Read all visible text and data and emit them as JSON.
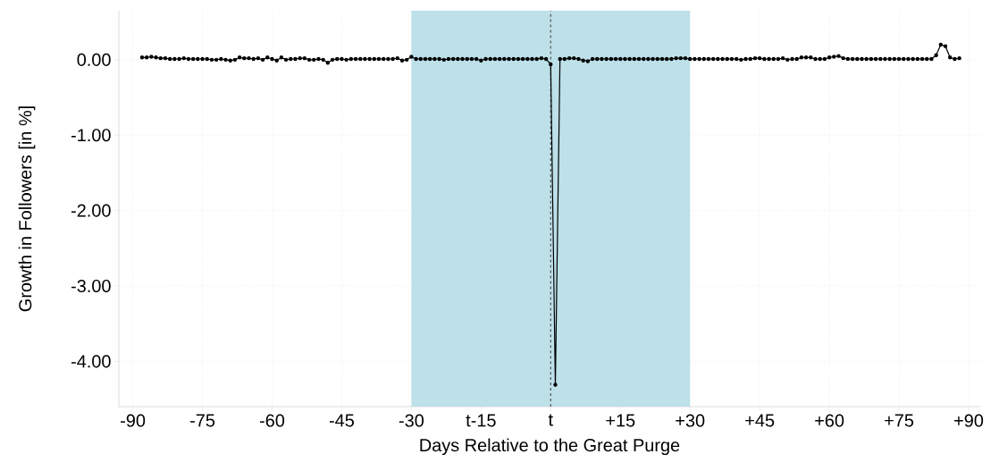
{
  "chart_data": {
    "type": "line",
    "xlabel": "Days Relative to the Great Purge",
    "ylabel": "Growth in Followers [in %]",
    "x": [
      -88,
      -87,
      -86,
      -85,
      -84,
      -83,
      -82,
      -81,
      -80,
      -79,
      -78,
      -77,
      -76,
      -75,
      -74,
      -73,
      -72,
      -71,
      -70,
      -69,
      -68,
      -67,
      -66,
      -65,
      -64,
      -63,
      -62,
      -61,
      -60,
      -59,
      -58,
      -57,
      -56,
      -55,
      -54,
      -53,
      -52,
      -51,
      -50,
      -49,
      -48,
      -47,
      -46,
      -45,
      -44,
      -43,
      -42,
      -41,
      -40,
      -39,
      -38,
      -37,
      -36,
      -35,
      -34,
      -33,
      -32,
      -31,
      -30,
      -29,
      -28,
      -27,
      -26,
      -25,
      -24,
      -23,
      -22,
      -21,
      -20,
      -19,
      -18,
      -17,
      -16,
      -15,
      -14,
      -13,
      -12,
      -11,
      -10,
      -9,
      -8,
      -7,
      -6,
      -5,
      -4,
      -3,
      -2,
      -1,
      0,
      1,
      2,
      3,
      4,
      5,
      6,
      7,
      8,
      9,
      10,
      11,
      12,
      13,
      14,
      15,
      16,
      17,
      18,
      19,
      20,
      21,
      22,
      23,
      24,
      25,
      26,
      27,
      28,
      29,
      30,
      31,
      32,
      33,
      34,
      35,
      36,
      37,
      38,
      39,
      40,
      41,
      42,
      43,
      44,
      45,
      46,
      47,
      48,
      49,
      50,
      51,
      52,
      53,
      54,
      55,
      56,
      57,
      58,
      59,
      60,
      61,
      62,
      63,
      64,
      65,
      66,
      67,
      68,
      69,
      70,
      71,
      72,
      73,
      74,
      75,
      76,
      77,
      78,
      79,
      80,
      81,
      82,
      83,
      84,
      85,
      86,
      87,
      88
    ],
    "series": [
      {
        "color": "#000000",
        "values": [
          0.03,
          0.03,
          0.04,
          0.03,
          0.02,
          0.02,
          0.01,
          0.01,
          0.01,
          0.02,
          0.01,
          0.01,
          0.01,
          0.01,
          0.01,
          0.0,
          0.0,
          0.01,
          0.0,
          -0.01,
          0.0,
          0.03,
          0.02,
          0.02,
          0.01,
          0.02,
          0.0,
          0.03,
          0.01,
          -0.01,
          0.03,
          0.0,
          0.01,
          0.01,
          0.02,
          0.02,
          0.0,
          0.0,
          0.01,
          0.0,
          -0.04,
          0.0,
          0.01,
          0.01,
          0.0,
          0.01,
          0.01,
          0.01,
          0.01,
          0.01,
          0.01,
          0.01,
          0.01,
          0.01,
          0.01,
          0.02,
          -0.01,
          0.0,
          0.04,
          0.01,
          0.01,
          0.01,
          0.01,
          0.01,
          0.01,
          0.0,
          0.01,
          0.01,
          0.01,
          0.01,
          0.01,
          0.01,
          0.01,
          -0.01,
          0.01,
          0.01,
          0.01,
          0.01,
          0.01,
          0.01,
          0.01,
          0.01,
          0.01,
          0.01,
          0.01,
          0.01,
          0.02,
          0.01,
          -0.06,
          -4.31,
          0.01,
          0.01,
          0.02,
          0.02,
          0.01,
          -0.01,
          -0.02,
          0.01,
          0.01,
          0.01,
          0.01,
          0.01,
          0.01,
          0.01,
          0.01,
          0.01,
          0.01,
          0.01,
          0.01,
          0.01,
          0.01,
          0.01,
          0.01,
          0.01,
          0.01,
          0.02,
          0.02,
          0.02,
          0.01,
          0.01,
          0.01,
          0.01,
          0.01,
          0.01,
          0.01,
          0.01,
          0.01,
          0.01,
          0.01,
          0.0,
          0.01,
          0.01,
          0.02,
          0.02,
          0.01,
          0.01,
          0.01,
          0.01,
          0.02,
          0.0,
          0.01,
          0.01,
          0.03,
          0.03,
          0.03,
          0.01,
          0.01,
          0.01,
          0.03,
          0.04,
          0.05,
          0.02,
          0.01,
          0.01,
          0.01,
          0.01,
          0.01,
          0.01,
          0.01,
          0.01,
          0.01,
          0.01,
          0.01,
          0.01,
          0.01,
          0.01,
          0.01,
          0.01,
          0.01,
          0.01,
          0.01,
          0.06,
          0.2,
          0.18,
          0.03,
          0.01,
          0.02
        ]
      }
    ],
    "xlim": [
      -93,
      92.5
    ],
    "ylim": [
      -4.6,
      0.65
    ],
    "xticks": [
      -90,
      -75,
      -60,
      -45,
      -30,
      {
        "value": -15,
        "label": "t-15"
      },
      {
        "value": 0,
        "label": "t"
      },
      {
        "value": 15,
        "label": "+15"
      },
      {
        "value": 30,
        "label": "+30"
      },
      {
        "value": 45,
        "label": "+45"
      },
      {
        "value": 60,
        "label": "+60"
      },
      {
        "value": 75,
        "label": "+75"
      },
      {
        "value": 90,
        "label": "+90"
      }
    ],
    "yticks": [
      {
        "value": 0,
        "label": "0.00"
      },
      {
        "value": -1,
        "label": "-1.00"
      },
      {
        "value": -2,
        "label": "-2.00"
      },
      {
        "value": -3,
        "label": "-3.00"
      },
      {
        "value": -4,
        "label": "-4.00"
      }
    ],
    "bands": [
      {
        "axis": "x",
        "from": -30,
        "to": 30,
        "color": "#bde0e9"
      }
    ],
    "ref_lines": [
      {
        "axis": "x",
        "value": 0,
        "color": "#555555",
        "line_style": "dashed"
      }
    ],
    "grid": true,
    "marker": "circle",
    "line_style": "solid"
  }
}
